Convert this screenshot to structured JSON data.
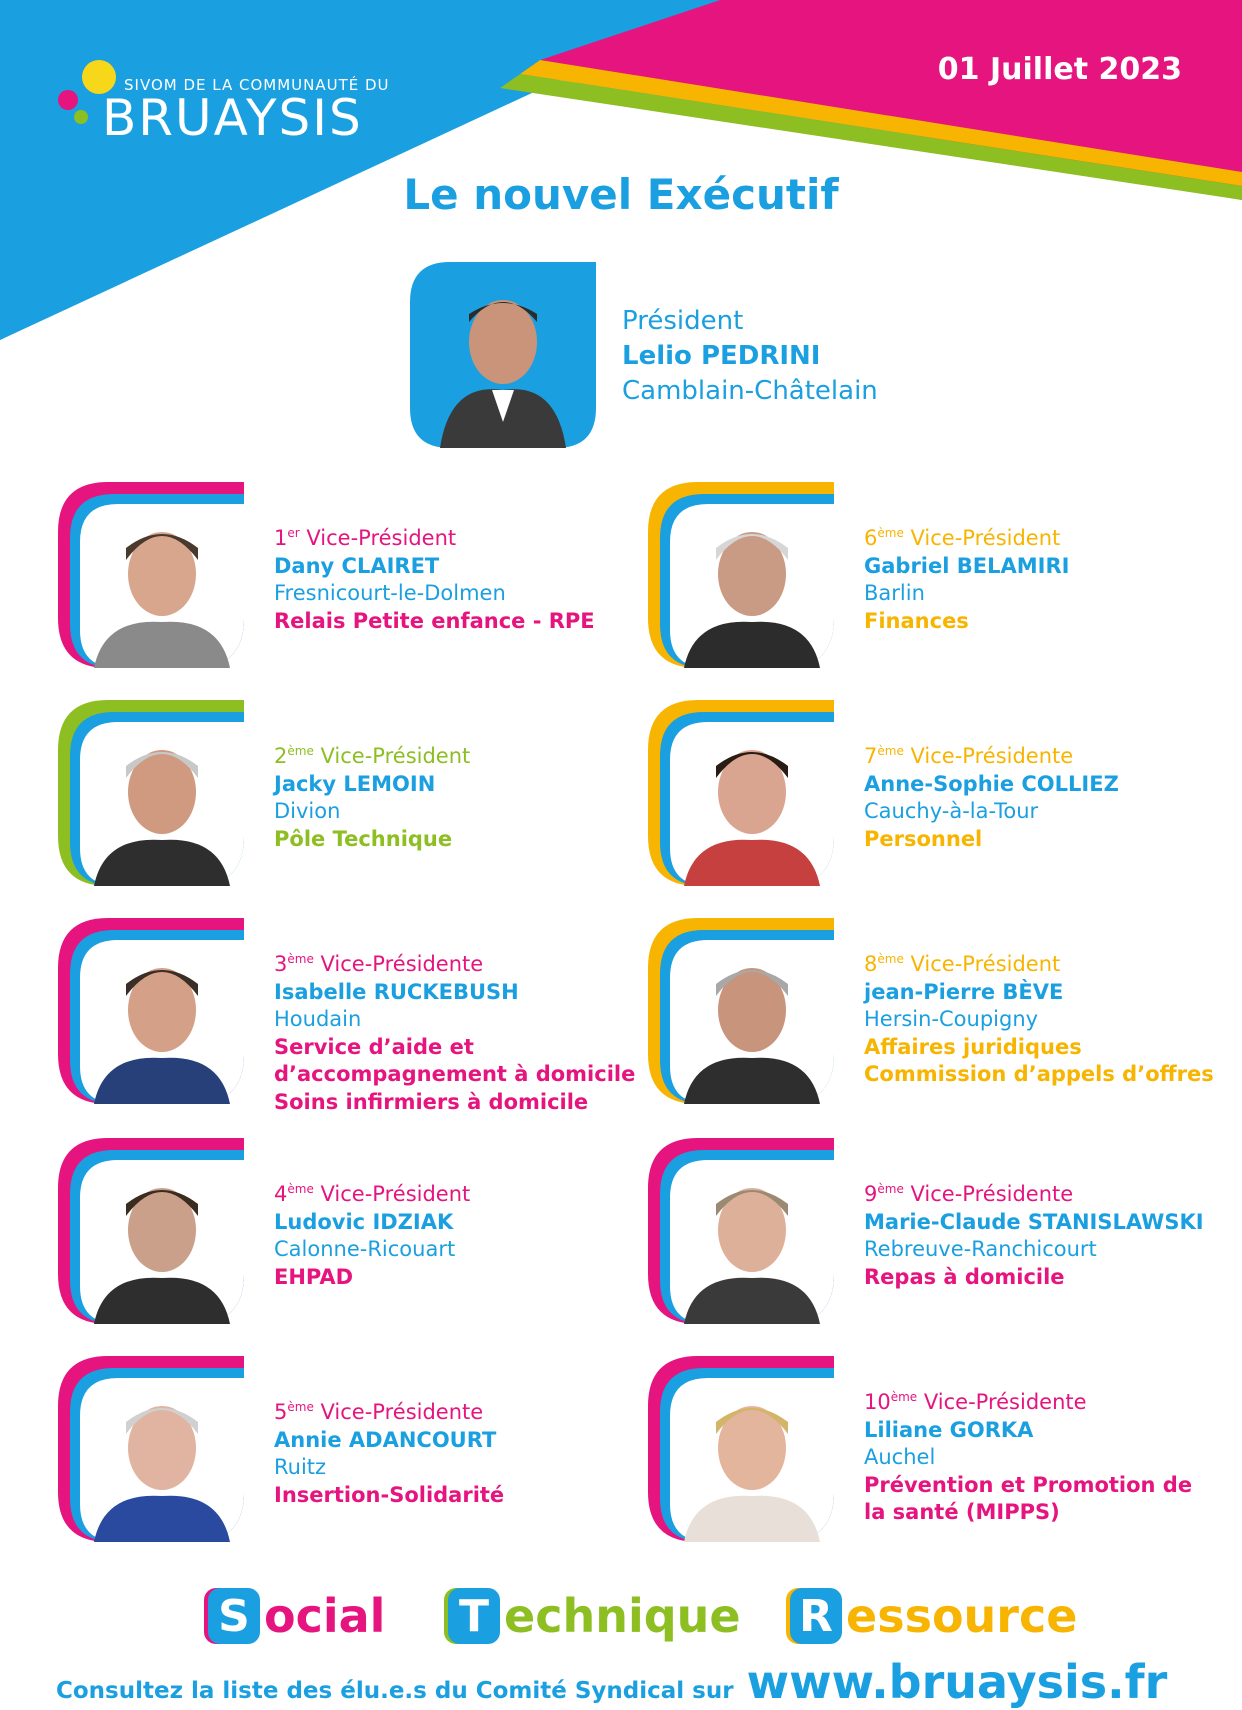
{
  "header": {
    "logo_subtitle": "SIVOM DE LA COMMUNAUTÉ DU",
    "logo_name": "BRUAYSIS",
    "date": "01 Juillet 2023",
    "title": "Le nouvel Exécutif"
  },
  "president": {
    "role": "Président",
    "name": "Lelio PEDRINI",
    "city": "Camblain-Châtelain"
  },
  "vice_presidents": [
    {
      "num": "1",
      "sup": "er",
      "role": " Vice-Président",
      "name": "Dany CLAIRET",
      "city": "Fresnicourt-le-Dolmen",
      "dept": [
        "Relais Petite enfance - RPE"
      ]
    },
    {
      "num": "2",
      "sup": "ème",
      "role": " Vice-Président",
      "name": "Jacky LEMOIN",
      "city": "Divion",
      "dept": [
        "Pôle Technique"
      ]
    },
    {
      "num": "3",
      "sup": "ème",
      "role": " Vice-Présidente",
      "name": "Isabelle RUCKEBUSH",
      "city": "Houdain",
      "dept": [
        "Service d’aide et",
        "d’accompagnement à domicile",
        "Soins infirmiers à domicile"
      ]
    },
    {
      "num": "4",
      "sup": "ème",
      "role": " Vice-Président",
      "name": "Ludovic IDZIAK",
      "city": "Calonne-Ricouart",
      "dept": [
        "EHPAD"
      ]
    },
    {
      "num": "5",
      "sup": "ème",
      "role": " Vice-Présidente",
      "name": "Annie ADANCOURT",
      "city": "Ruitz",
      "dept": [
        "Insertion-Solidarité"
      ]
    },
    {
      "num": "6",
      "sup": "ème",
      "role": " Vice-Président",
      "name": "Gabriel BELAMIRI",
      "city": "Barlin",
      "dept": [
        "Finances"
      ]
    },
    {
      "num": "7",
      "sup": "ème",
      "role": " Vice-Présidente",
      "name": "Anne-Sophie COLLIEZ",
      "city": "Cauchy-à-la-Tour",
      "dept": [
        "Personnel"
      ]
    },
    {
      "num": "8",
      "sup": "ème",
      "role": " Vice-Président",
      "name": "jean-Pierre BÈVE",
      "city": "Hersin-Coupigny",
      "dept": [
        "Affaires juridiques",
        "Commission d’appels d’offres"
      ]
    },
    {
      "num": "9",
      "sup": "ème",
      "role": " Vice-Présidente",
      "name": "Marie-Claude STANISLAWSKI",
      "city": "Rebreuve-Ranchicourt",
      "dept": [
        "Repas à domicile"
      ]
    },
    {
      "num": "10",
      "sup": "ème",
      "role": " Vice-Présidente",
      "name": "Liliane GORKA",
      "city": "Auchel",
      "dept": [
        "Prévention et Promotion de",
        "la santé (MIPPS)"
      ]
    }
  ],
  "pillars": [
    {
      "letter": "S",
      "rest": "ocial",
      "color": "#e5147e"
    },
    {
      "letter": "T",
      "rest": "echnique",
      "color": "#8dbe22"
    },
    {
      "letter": "R",
      "rest": "essource",
      "color": "#f7b400"
    }
  ],
  "footer": {
    "text": "Consultez la liste des élu.e.s du Comité Syndical sur",
    "url": "www.bruaysis.fr"
  },
  "colors": {
    "blue": "#1a9fe0",
    "pink": "#e5147e",
    "green": "#8dbe22",
    "yellow": "#f7b400"
  }
}
